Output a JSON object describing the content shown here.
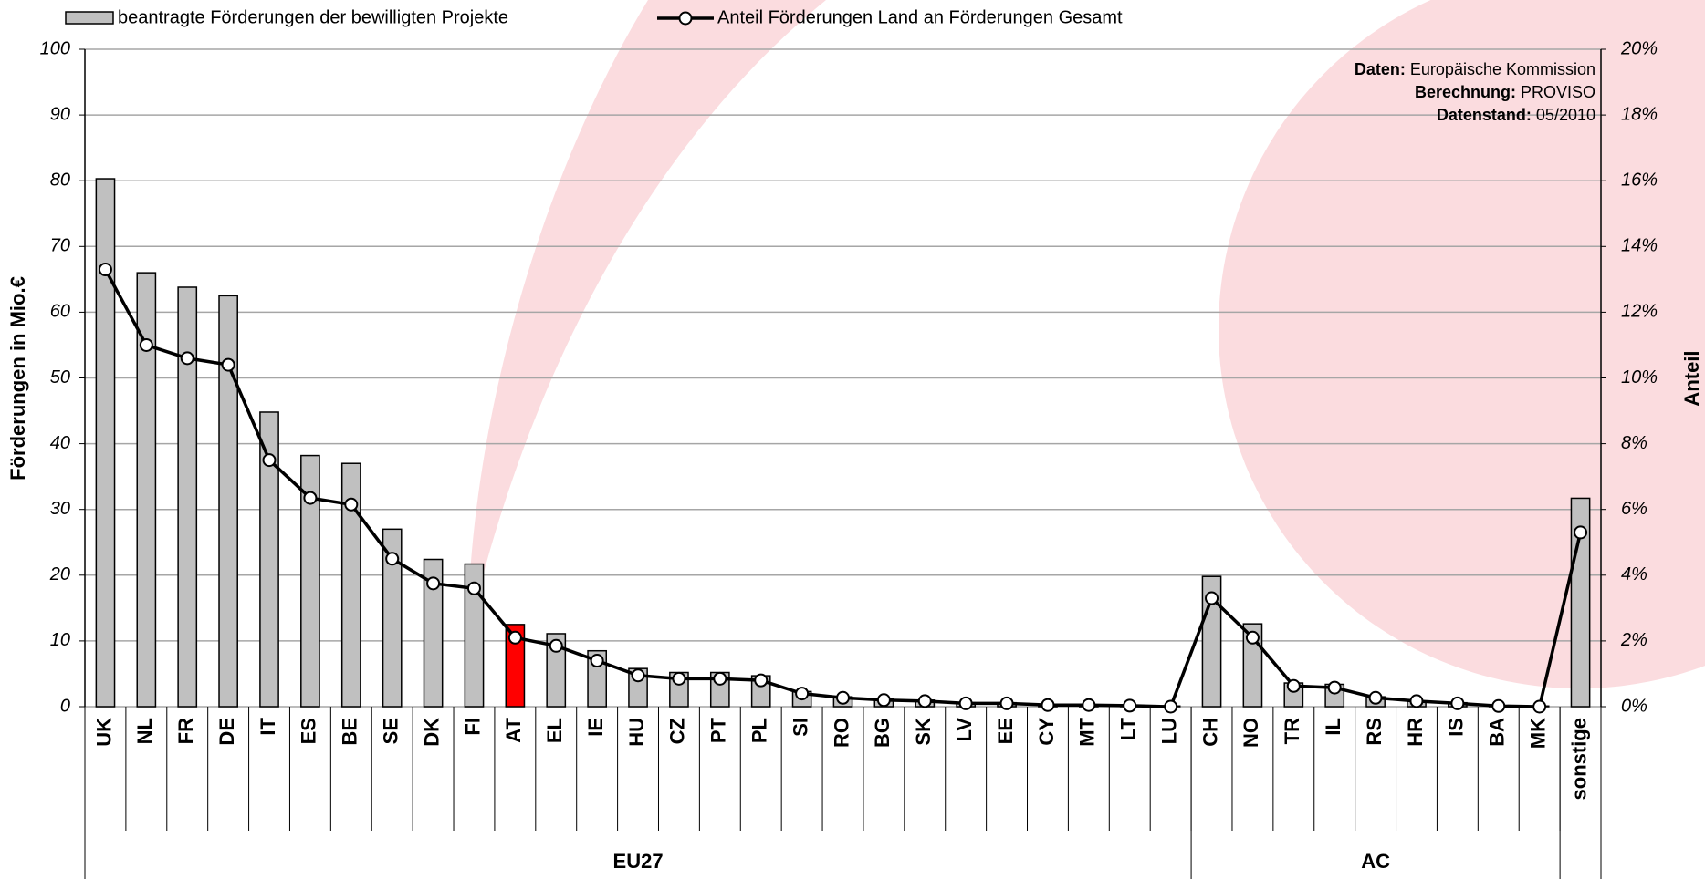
{
  "chart_data": {
    "type": "bar_line",
    "categories": [
      "UK",
      "NL",
      "FR",
      "DE",
      "IT",
      "ES",
      "BE",
      "SE",
      "DK",
      "FI",
      "AT",
      "EL",
      "IE",
      "HU",
      "CZ",
      "PT",
      "PL",
      "SI",
      "RO",
      "BG",
      "SK",
      "LV",
      "EE",
      "CY",
      "MT",
      "LT",
      "LU",
      "CH",
      "NO",
      "TR",
      "IL",
      "RS",
      "HR",
      "IS",
      "BA",
      "MK",
      "sonstige"
    ],
    "groups": [
      {
        "label": "EU27",
        "size": 27
      },
      {
        "label": "AC",
        "size": 9
      }
    ],
    "series": [
      {
        "name": "beantragte Förderungen der bewilligten Projekte",
        "type": "bar",
        "color": "#c0c0c0",
        "highlight": {
          "index": 10,
          "color": "#ff0000"
        },
        "values": [
          80.3,
          66,
          63.8,
          62.5,
          44.8,
          38.2,
          37,
          27,
          22.4,
          21.7,
          12.5,
          11.1,
          8.5,
          5.8,
          5.2,
          5.2,
          4.7,
          2.3,
          1.5,
          1.2,
          1.0,
          0.6,
          0.6,
          0.3,
          0.3,
          0.2,
          0.1,
          19.8,
          12.6,
          3.6,
          3.4,
          1.5,
          0.8,
          0.6,
          0.15,
          0.1,
          31.7
        ]
      },
      {
        "name": "Anteil Förderungen Land an Förderungen Gesamt",
        "type": "line",
        "color": "#000000",
        "axis": "y2",
        "values": [
          13.3,
          11.0,
          10.6,
          10.4,
          7.5,
          6.35,
          6.15,
          4.5,
          3.75,
          3.6,
          2.1,
          1.85,
          1.4,
          0.95,
          0.85,
          0.85,
          0.8,
          0.4,
          0.27,
          0.2,
          0.17,
          0.1,
          0.1,
          0.05,
          0.05,
          0.03,
          0.0,
          3.3,
          2.1,
          0.63,
          0.58,
          0.27,
          0.17,
          0.1,
          0.02,
          0.0,
          5.3
        ]
      }
    ],
    "y_label": "Förderungen in Mio.€",
    "y2_label": "Anteil",
    "ylim": [
      0,
      100
    ],
    "yticks": [
      0,
      10,
      20,
      30,
      40,
      50,
      60,
      70,
      80,
      90,
      100
    ],
    "y2lim": [
      0,
      20
    ],
    "y2ticks": [
      {
        "value": 0,
        "label": "0%"
      },
      {
        "value": 2,
        "label": "2%"
      },
      {
        "value": 4,
        "label": "4%"
      },
      {
        "value": 6,
        "label": "6%"
      },
      {
        "value": 8,
        "label": "8%"
      },
      {
        "value": 10,
        "label": "10%"
      },
      {
        "value": 12,
        "label": "12%"
      },
      {
        "value": 14,
        "label": "14%"
      },
      {
        "value": 16,
        "label": "16%"
      },
      {
        "value": 18,
        "label": "18%"
      },
      {
        "value": 20,
        "label": "20%"
      }
    ],
    "grid": true,
    "annotations": [
      {
        "bold": "Daten:",
        "text": "Europäische Kommission"
      },
      {
        "bold": "Berechnung:",
        "text": "PROVISO"
      },
      {
        "bold": "Datenstand:",
        "text": "05/2010"
      }
    ]
  }
}
